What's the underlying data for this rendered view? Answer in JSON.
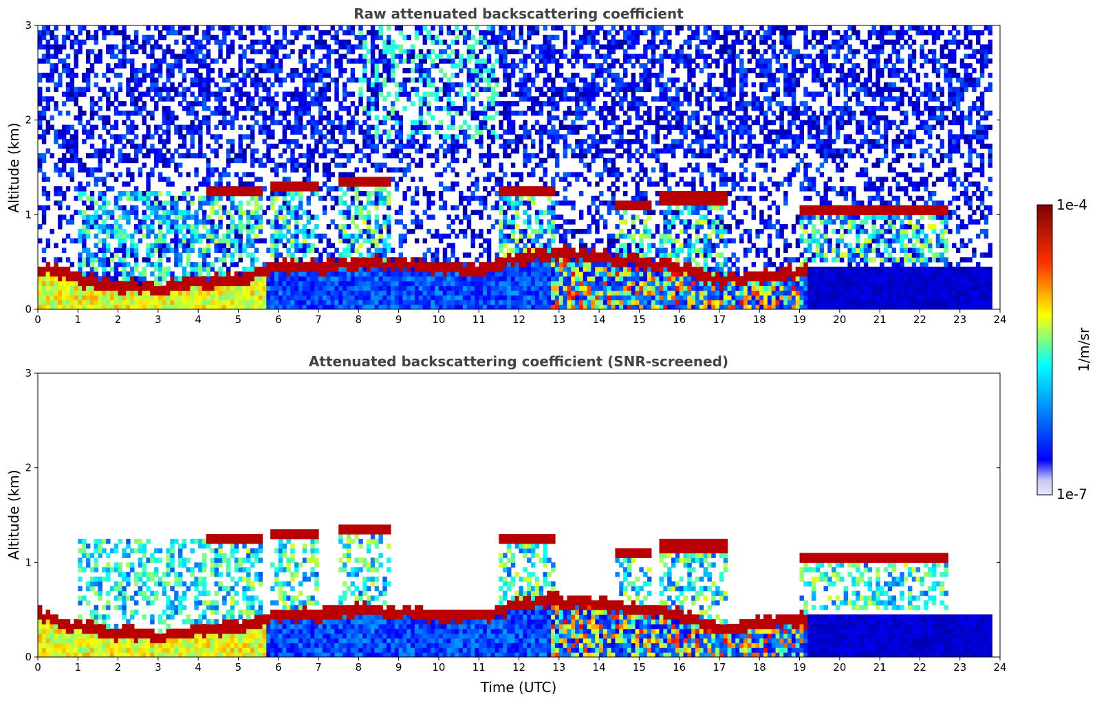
{
  "chart_data": [
    {
      "type": "heatmap",
      "title": "Raw attenuated backscattering coefficient",
      "xlabel": "",
      "ylabel": "Altitude (km)",
      "xlim": [
        0,
        24
      ],
      "ylim": [
        0,
        3
      ],
      "xticks": [
        "0",
        "1",
        "2",
        "3",
        "4",
        "5",
        "6",
        "7",
        "8",
        "9",
        "10",
        "11",
        "12",
        "13",
        "14",
        "15",
        "16",
        "17",
        "18",
        "19",
        "20",
        "21",
        "22",
        "23",
        "24"
      ],
      "yticks": [
        "0",
        "1",
        "2",
        "3"
      ],
      "grid": false,
      "noise_above_layers": true,
      "features": {
        "boundary_layer_top_km": [
          [
            0,
            0.45
          ],
          [
            1,
            0.32
          ],
          [
            2,
            0.25
          ],
          [
            3,
            0.22
          ],
          [
            4,
            0.28
          ],
          [
            5,
            0.32
          ],
          [
            5.7,
            0.4
          ],
          [
            6,
            0.45
          ],
          [
            7,
            0.45
          ],
          [
            8,
            0.5
          ],
          [
            9,
            0.48
          ],
          [
            10,
            0.45
          ],
          [
            11,
            0.42
          ],
          [
            12,
            0.55
          ],
          [
            13,
            0.6
          ],
          [
            14,
            0.55
          ],
          [
            15,
            0.5
          ],
          [
            16,
            0.45
          ],
          [
            17,
            0.3
          ],
          [
            18,
            0.35
          ],
          [
            19,
            0.4
          ]
        ],
        "cloud_layers": [
          {
            "t_start": 4.2,
            "t_end": 5.6,
            "altitude_km": 1.25
          },
          {
            "t_start": 5.8,
            "t_end": 7.0,
            "altitude_km": 1.3
          },
          {
            "t_start": 7.5,
            "t_end": 8.8,
            "altitude_km": 1.35
          },
          {
            "t_start": 11.5,
            "t_end": 12.9,
            "altitude_km": 1.25
          },
          {
            "t_start": 14.4,
            "t_end": 15.3,
            "altitude_km": 1.1
          },
          {
            "t_start": 15.5,
            "t_end": 17.2,
            "altitude_km": 1.18
          },
          {
            "t_start": 19.0,
            "t_end": 22.7,
            "altitude_km": 1.05
          }
        ]
      }
    },
    {
      "type": "heatmap",
      "title": "Attenuated backscattering coefficient (SNR-screened)",
      "xlabel": "Time (UTC)",
      "ylabel": "Altitude (km)",
      "xlim": [
        0,
        24
      ],
      "ylim": [
        0,
        3
      ],
      "xticks": [
        "0",
        "1",
        "2",
        "3",
        "4",
        "5",
        "6",
        "7",
        "8",
        "9",
        "10",
        "11",
        "12",
        "13",
        "14",
        "15",
        "16",
        "17",
        "18",
        "19",
        "20",
        "21",
        "22",
        "23",
        "24"
      ],
      "yticks": [
        "0",
        "1",
        "2",
        "3"
      ],
      "grid": false,
      "noise_above_layers": false
    }
  ],
  "colorbar": {
    "label": "1/m/sr",
    "max_label": "1e-4",
    "min_label": "1e-7",
    "colormap": "jet",
    "colors": [
      "#e6e6fa",
      "#0000ff",
      "#00ffff",
      "#ffff00",
      "#ff0000",
      "#800000"
    ]
  }
}
